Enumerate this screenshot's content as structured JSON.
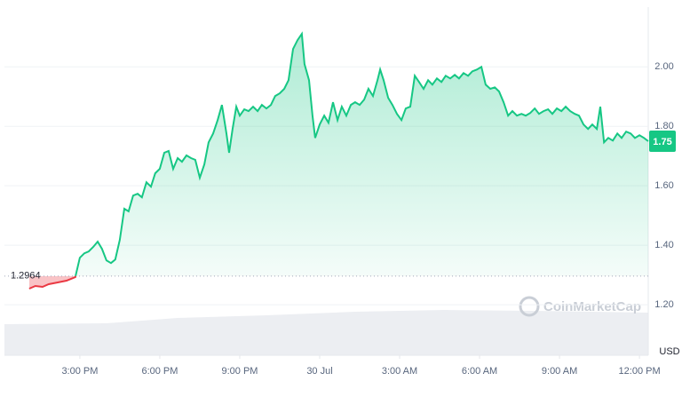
{
  "chart_data": {
    "type": "line",
    "x": [
      13.1,
      13.33,
      13.6,
      13.83,
      14.17,
      14.5,
      14.83,
      15,
      15.17,
      15.33,
      15.5,
      15.67,
      15.83,
      16,
      16.17,
      16.33,
      16.5,
      16.67,
      16.83,
      17,
      17.17,
      17.33,
      17.5,
      17.67,
      17.83,
      18,
      18.17,
      18.33,
      18.5,
      18.67,
      18.83,
      19,
      19.17,
      19.33,
      19.5,
      19.67,
      19.83,
      20,
      20.17,
      20.33,
      20.5,
      20.6,
      20.73,
      20.87,
      21,
      21.17,
      21.33,
      21.5,
      21.67,
      21.83,
      22,
      22.17,
      22.33,
      22.5,
      22.67,
      22.83,
      23,
      23.17,
      23.33,
      23.43,
      23.6,
      23.73,
      23.83,
      24,
      24.17,
      24.33,
      24.5,
      24.67,
      24.83,
      25,
      25.17,
      25.33,
      25.5,
      25.67,
      25.83,
      26,
      26.17,
      26.27,
      26.4,
      26.57,
      26.73,
      26.9,
      27.07,
      27.23,
      27.4,
      27.57,
      27.73,
      27.9,
      28.07,
      28.23,
      28.4,
      28.57,
      28.73,
      28.9,
      29.07,
      29.23,
      29.4,
      29.57,
      29.73,
      29.9,
      30.07,
      30.23,
      30.4,
      30.57,
      30.73,
      30.9,
      31.07,
      31.23,
      31.4,
      31.57,
      31.73,
      31.9,
      32.07,
      32.23,
      32.4,
      32.57,
      32.73,
      32.9,
      33.07,
      33.23,
      33.4,
      33.57,
      33.73,
      33.9,
      34.07,
      34.23,
      34.4,
      34.53,
      34.67,
      34.83,
      35,
      35.17,
      35.33,
      35.5,
      35.67,
      35.83,
      36,
      36.17,
      36.33
    ],
    "values": [
      1.254,
      1.263,
      1.26,
      1.269,
      1.275,
      1.281,
      1.293,
      1.358,
      1.373,
      1.379,
      1.394,
      1.412,
      1.388,
      1.349,
      1.34,
      1.352,
      1.418,
      1.523,
      1.514,
      1.567,
      1.573,
      1.561,
      1.612,
      1.597,
      1.642,
      1.657,
      1.711,
      1.717,
      1.657,
      1.693,
      1.681,
      1.702,
      1.693,
      1.687,
      1.627,
      1.672,
      1.746,
      1.776,
      1.821,
      1.872,
      1.776,
      1.711,
      1.791,
      1.866,
      1.836,
      1.857,
      1.851,
      1.866,
      1.851,
      1.872,
      1.86,
      1.872,
      1.902,
      1.911,
      1.926,
      1.955,
      2.06,
      2.09,
      2.111,
      2.009,
      1.955,
      1.836,
      1.761,
      1.806,
      1.836,
      1.812,
      1.881,
      1.821,
      1.866,
      1.836,
      1.872,
      1.881,
      1.872,
      1.89,
      1.926,
      1.902,
      1.955,
      1.991,
      1.955,
      1.896,
      1.872,
      1.842,
      1.821,
      1.86,
      1.866,
      1.97,
      1.949,
      1.926,
      1.955,
      1.94,
      1.961,
      1.949,
      1.97,
      1.961,
      1.973,
      1.961,
      1.979,
      1.97,
      1.985,
      1.991,
      2.0,
      1.94,
      1.926,
      1.931,
      1.917,
      1.881,
      1.836,
      1.851,
      1.836,
      1.842,
      1.836,
      1.845,
      1.86,
      1.842,
      1.851,
      1.857,
      1.842,
      1.86,
      1.851,
      1.866,
      1.851,
      1.842,
      1.836,
      1.806,
      1.791,
      1.806,
      1.791,
      1.866,
      1.746,
      1.761,
      1.752,
      1.776,
      1.761,
      1.782,
      1.776,
      1.761,
      1.77,
      1.761,
      1.75
    ],
    "color": "#16c784",
    "below_color": "#ea3943",
    "reference_value": 1.2964,
    "xlim": [
      12.17,
      36.33
    ],
    "xticks": [
      {
        "value": 15,
        "label": "3:00 PM"
      },
      {
        "value": 18,
        "label": "6:00 PM"
      },
      {
        "value": 21,
        "label": "9:00 PM"
      },
      {
        "value": 24,
        "label": "30 Jul"
      },
      {
        "value": 27,
        "label": "3:00 AM"
      },
      {
        "value": 30,
        "label": "6:00 AM"
      },
      {
        "value": 33,
        "label": "9:00 AM"
      },
      {
        "value": 36,
        "label": "12:00 PM"
      }
    ],
    "ylim": [
      1.03,
      2.18
    ],
    "yticks": [
      {
        "value": 1.2,
        "label": "1.20"
      },
      {
        "value": 1.4,
        "label": "1.40"
      },
      {
        "value": 1.6,
        "label": "1.60"
      },
      {
        "value": 1.8,
        "label": "1.80"
      },
      {
        "value": 2,
        "label": "2.00"
      }
    ],
    "y_unit": "USD",
    "watermark": "CoinMarketCap",
    "grid": true
  }
}
